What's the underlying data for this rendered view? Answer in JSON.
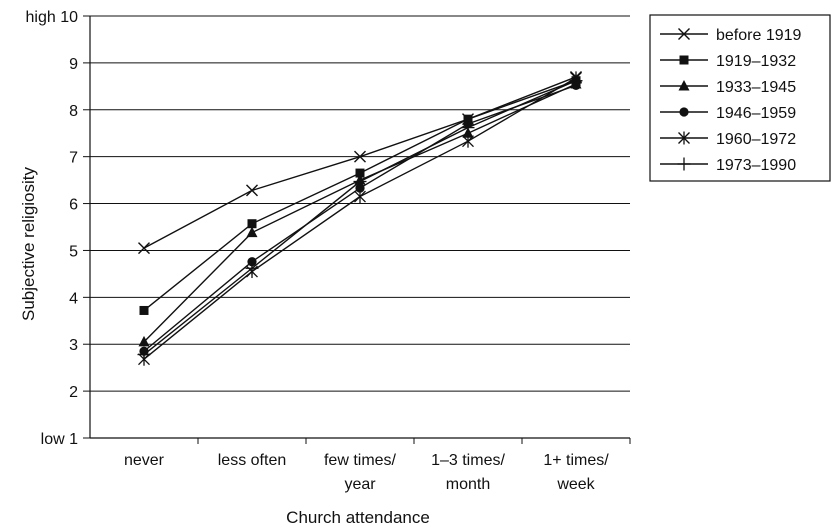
{
  "chart_data": {
    "type": "line",
    "title": "",
    "xlabel": "Church attendance",
    "ylabel": "Subjective religiosity",
    "categories": [
      [
        "never"
      ],
      [
        "less often"
      ],
      [
        "few times/",
        "year"
      ],
      [
        "1–3 times/",
        "month"
      ],
      [
        "1+ times/",
        "week"
      ]
    ],
    "ylim": [
      1,
      10
    ],
    "yticks": [
      {
        "value": 1,
        "label": "low 1"
      },
      {
        "value": 2,
        "label": "2"
      },
      {
        "value": 3,
        "label": "3"
      },
      {
        "value": 4,
        "label": "4"
      },
      {
        "value": 5,
        "label": "5"
      },
      {
        "value": 6,
        "label": "6"
      },
      {
        "value": 7,
        "label": "7"
      },
      {
        "value": 8,
        "label": "8"
      },
      {
        "value": 9,
        "label": "9"
      },
      {
        "value": 10,
        "label": "high 10"
      }
    ],
    "grid": true,
    "legend_position": "top-right",
    "line_color": "#111111",
    "series": [
      {
        "name": "before 1919",
        "marker": "x",
        "values": [
          5.05,
          6.28,
          7.0,
          7.8,
          8.7
        ]
      },
      {
        "name": "1919–1932",
        "marker": "square",
        "values": [
          3.72,
          5.57,
          6.65,
          7.8,
          8.62
        ]
      },
      {
        "name": "1933–1945",
        "marker": "triangle",
        "values": [
          3.05,
          5.38,
          6.5,
          7.5,
          8.55
        ]
      },
      {
        "name": "1946–1959",
        "marker": "circle",
        "values": [
          2.85,
          4.76,
          6.33,
          7.7,
          8.52
        ]
      },
      {
        "name": "1960–1972",
        "marker": "asterisk",
        "values": [
          2.68,
          4.55,
          6.15,
          7.33,
          8.68
        ]
      },
      {
        "name": "1973–1990",
        "marker": "plus",
        "values": [
          2.78,
          4.62,
          6.47,
          7.62,
          8.62
        ]
      }
    ]
  }
}
